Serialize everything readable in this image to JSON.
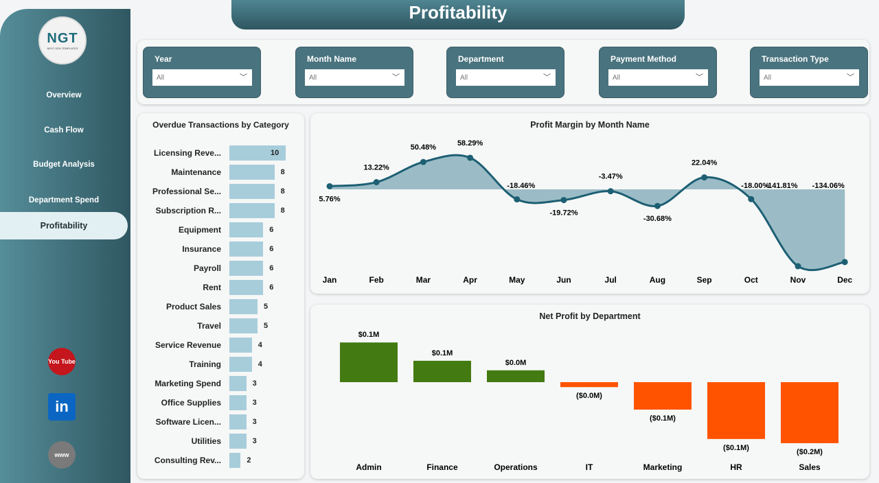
{
  "header": {
    "title": "Profitability"
  },
  "logo": {
    "text": "NGT",
    "subtext": "NEXT GEN TEMPLATES"
  },
  "sidebar": {
    "items": [
      {
        "label": "Overview",
        "active": false
      },
      {
        "label": "Cash Flow",
        "active": false
      },
      {
        "label": "Budget Analysis",
        "active": false
      },
      {
        "label": "Department Spend",
        "active": false
      },
      {
        "label": "Profitability",
        "active": true
      }
    ],
    "social": [
      {
        "icon": "youtube-icon",
        "label": "You Tube",
        "color": "#c4161c"
      },
      {
        "icon": "linkedin-icon",
        "label": "in",
        "color": "#0a66c2"
      },
      {
        "icon": "globe-icon",
        "label": "www",
        "color": "#7a7a7a"
      }
    ]
  },
  "filters": [
    {
      "label": "Year",
      "value": "All"
    },
    {
      "label": "Month Name",
      "value": "All"
    },
    {
      "label": "Department",
      "value": "All"
    },
    {
      "label": "Payment Method",
      "value": "All"
    },
    {
      "label": "Transaction Type",
      "value": "All"
    }
  ],
  "chart_data": [
    {
      "type": "bar",
      "orientation": "horizontal",
      "title": "Overdue Transactions by Category",
      "color": "#a7cddb",
      "categories": [
        "Licensing Reve...",
        "Maintenance",
        "Professional Se...",
        "Subscription R...",
        "Equipment",
        "Insurance",
        "Payroll",
        "Rent",
        "Product Sales",
        "Travel",
        "Service Revenue",
        "Training",
        "Marketing Spend",
        "Office Supplies",
        "Software Licen...",
        "Utilities",
        "Consulting Rev..."
      ],
      "values": [
        10,
        8,
        8,
        8,
        6,
        6,
        6,
        6,
        5,
        5,
        4,
        4,
        3,
        3,
        3,
        3,
        2
      ]
    },
    {
      "type": "area",
      "title": "Profit Margin by Month Name",
      "line_color": "#1d5f73",
      "fill_color": "#9bbcc6",
      "categories": [
        "Jan",
        "Feb",
        "Mar",
        "Apr",
        "May",
        "Jun",
        "Jul",
        "Aug",
        "Sep",
        "Oct",
        "Nov",
        "Dec"
      ],
      "values": [
        5.76,
        13.22,
        50.48,
        58.29,
        -18.46,
        -19.72,
        -3.47,
        -30.68,
        22.04,
        -18.0,
        -141.81,
        -134.06
      ],
      "labels": [
        "5.76%",
        "13.22%",
        "50.48%",
        "58.29%",
        "-18.46%",
        "-19.72%",
        "-3.47%",
        "-30.68%",
        "22.04%",
        "-18.00%",
        "-141.81%",
        "-134.06%"
      ]
    },
    {
      "type": "bar",
      "title": "Net Profit by Department",
      "positive_color": "#437a12",
      "negative_color": "#ff5300",
      "categories": [
        "Admin",
        "Finance",
        "Operations",
        "IT",
        "Marketing",
        "HR",
        "Sales"
      ],
      "values": [
        0.104,
        0.056,
        0.031,
        -0.013,
        -0.072,
        -0.149,
        -0.16
      ],
      "labels": [
        "$0.1M",
        "$0.1M",
        "$0.0M",
        "($0.0M)",
        "($0.1M)",
        "($0.1M)",
        "($0.2M)"
      ]
    }
  ]
}
